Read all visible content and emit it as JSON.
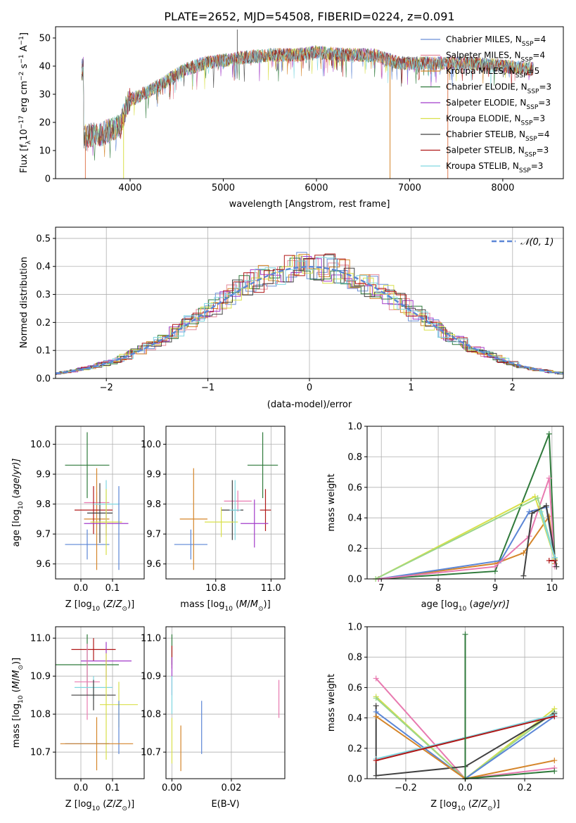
{
  "figure": {
    "title": "PLATE=2652, MJD=54508, FIBERID=0224, z=0.091"
  },
  "chart_data": [
    {
      "id": "spectrum",
      "type": "line",
      "title": "PLATE=2652, MJD=54508, FIBERID=0224, z=0.091",
      "xlabel": "wavelength [Angstrom, rest frame]",
      "ylabel_main": "Flux [f",
      "ylabel_sub": "λ",
      "ylabel_rest": "10",
      "ylabel_exp": "−17",
      "ylabel_tail": " erg cm",
      "ylabel_exp2": "−2",
      "ylabel_tail2": " s",
      "ylabel_exp3": "−1",
      "ylabel_tail3": " A",
      "ylabel_exp4": "−1",
      "ylabel_end": "]",
      "xlim": [
        3200,
        8650
      ],
      "ylim": [
        0,
        54
      ],
      "xticks": [
        4000,
        5000,
        6000,
        7000,
        8000
      ],
      "yticks": [
        0,
        10,
        20,
        30,
        40,
        50
      ],
      "continuum": [
        [
          3500,
          15
        ],
        [
          3700,
          16
        ],
        [
          3900,
          19
        ],
        [
          3950,
          25
        ],
        [
          4000,
          28
        ],
        [
          4200,
          31
        ],
        [
          4400,
          35
        ],
        [
          4600,
          39
        ],
        [
          4800,
          41
        ],
        [
          5000,
          42
        ],
        [
          5200,
          43
        ],
        [
          5500,
          44
        ],
        [
          5800,
          44
        ],
        [
          6000,
          45
        ],
        [
          6300,
          44
        ],
        [
          6600,
          44
        ],
        [
          6900,
          41
        ],
        [
          7100,
          41
        ],
        [
          7400,
          41
        ],
        [
          7700,
          41
        ],
        [
          8000,
          40
        ],
        [
          8300,
          39
        ]
      ],
      "series": [
        {
          "name_pre": "Chabrier MILES, N",
          "name_sub": "SSP",
          "name_post": "=4",
          "color": "#6a8fd6"
        },
        {
          "name_pre": "Salpeter MILES, N",
          "name_sub": "SSP",
          "name_post": "=4",
          "color": "#e58a9a"
        },
        {
          "name_pre": "Kroupa MILES, N",
          "name_sub": "SSP",
          "name_post": "=5",
          "color": "#d5852a"
        },
        {
          "name_pre": "Chabrier ELODIE, N",
          "name_sub": "SSP",
          "name_post": "=3",
          "color": "#2f7a3b"
        },
        {
          "name_pre": "Salpeter ELODIE, N",
          "name_sub": "SSP",
          "name_post": "=3",
          "color": "#a23bc9"
        },
        {
          "name_pre": "Kroupa ELODIE, N",
          "name_sub": "SSP",
          "name_post": "=3",
          "color": "#d9e04a"
        },
        {
          "name_pre": "Chabrier STELIB, N",
          "name_sub": "SSP",
          "name_post": "=4",
          "color": "#404040"
        },
        {
          "name_pre": "Salpeter STELIB, N",
          "name_sub": "SSP",
          "name_post": "=3",
          "color": "#b01818"
        },
        {
          "name_pre": "Kroupa STELIB, N",
          "name_sub": "SSP",
          "name_post": "=3",
          "color": "#7fd6e0"
        }
      ],
      "drops": [
        {
          "x": 3520,
          "color": "#e07b54"
        },
        {
          "x": 3930,
          "color": "#d9e04a"
        },
        {
          "x": 6790,
          "color": "#d5852a"
        },
        {
          "x": 7410,
          "color": "#e07b54"
        }
      ]
    },
    {
      "id": "residuals",
      "type": "line",
      "xlabel": "(data-model)/error",
      "ylabel": "Normed distribution",
      "xlim": [
        -2.5,
        2.5
      ],
      "ylim": [
        0,
        0.54
      ],
      "xticks": [
        -2,
        -1,
        0,
        1,
        2
      ],
      "yticks": [
        0.0,
        0.1,
        0.2,
        0.3,
        0.4,
        0.5
      ],
      "legend_label": "𝒩(0, 1)",
      "normal_color": "#5b86d6",
      "bin_width": 0.1
    },
    {
      "id": "age_vs_Z",
      "type": "scatter",
      "xlabel": "Z [log",
      "xlabel_sub": "10",
      "xlabel_rest": "(Z/Z",
      "xlabel_sub2": "⊙",
      "xlabel_end": ")]",
      "ylabel": "age  [log",
      "ylabel_sub": "10",
      "ylabel_rest": "(age/yr)]",
      "xlim": [
        -0.08,
        0.2
      ],
      "ylim": [
        9.55,
        10.06
      ],
      "xticks": [
        0.0,
        0.1
      ],
      "yticks": [
        9.6,
        9.7,
        9.8,
        9.9,
        10.0
      ],
      "points": [
        {
          "x": 0.02,
          "y": 9.93,
          "xerr": 0.07,
          "yerr": 0.11,
          "color": "#2f7a3b"
        },
        {
          "x": 0.02,
          "y": 9.665,
          "xerr": 0.07,
          "yerr": 0.05,
          "color": "#5b86d6"
        },
        {
          "x": 0.05,
          "y": 9.805,
          "xerr": 0.04,
          "yerr": 0.035,
          "color": "#e87ab0"
        },
        {
          "x": 0.05,
          "y": 9.75,
          "xerr": 0.04,
          "yerr": 0.17,
          "color": "#d5852a"
        },
        {
          "x": 0.04,
          "y": 9.78,
          "xerr": 0.06,
          "yerr": 0.08,
          "color": "#b01818"
        },
        {
          "x": 0.06,
          "y": 9.77,
          "xerr": 0.04,
          "yerr": 0.1,
          "color": "#404040"
        },
        {
          "x": 0.08,
          "y": 9.8,
          "xerr": 0.04,
          "yerr": 0.08,
          "color": "#7fd6e0"
        },
        {
          "x": 0.08,
          "y": 9.735,
          "xerr": 0.07,
          "yerr": 0.04,
          "color": "#a23bc9"
        },
        {
          "x": 0.08,
          "y": 9.74,
          "xerr": 0.05,
          "yerr": 0.11,
          "color": "#d9e04a"
        },
        {
          "x": 0.12,
          "y": 9.72,
          "xerr": 0.0,
          "yerr": 0.14,
          "color": "#5b86d6"
        }
      ]
    },
    {
      "id": "age_vs_mass",
      "type": "scatter",
      "xlabel": "mass [log",
      "xlabel_sub": "10",
      "xlabel_rest": "(M/M",
      "xlabel_sub2": "⊙",
      "xlabel_end": ")]",
      "xlim": [
        10.62,
        11.05
      ],
      "ylim": [
        9.55,
        10.06
      ],
      "xticks": [
        10.8,
        11.0
      ],
      "yticks": [
        9.6,
        9.7,
        9.8,
        9.9,
        10.0
      ],
      "points": [
        {
          "x": 10.97,
          "y": 9.93,
          "xerr": 0.055,
          "yerr": 0.11,
          "color": "#2f7a3b"
        },
        {
          "x": 10.71,
          "y": 9.665,
          "xerr": 0.06,
          "yerr": 0.05,
          "color": "#5b86d6"
        },
        {
          "x": 10.88,
          "y": 9.81,
          "xerr": 0.05,
          "yerr": 0.035,
          "color": "#e87ab0"
        },
        {
          "x": 10.72,
          "y": 9.75,
          "xerr": 0.05,
          "yerr": 0.17,
          "color": "#d5852a"
        },
        {
          "x": 10.86,
          "y": 9.78,
          "xerr": 0.04,
          "yerr": 0.1,
          "color": "#404040"
        },
        {
          "x": 10.98,
          "y": 9.78,
          "xerr": 0.02,
          "yerr": 0.07,
          "color": "#b01818"
        },
        {
          "x": 10.94,
          "y": 9.735,
          "xerr": 0.05,
          "yerr": 0.08,
          "color": "#a23bc9"
        },
        {
          "x": 10.82,
          "y": 9.74,
          "xerr": 0.06,
          "yerr": 0.05,
          "color": "#d9e04a"
        },
        {
          "x": 10.87,
          "y": 9.78,
          "xerr": 0.02,
          "yerr": 0.1,
          "color": "#7fd6e0"
        }
      ]
    },
    {
      "id": "weight_vs_age",
      "type": "line",
      "xlabel": "age  [log",
      "xlabel_sub": "10",
      "xlabel_rest": "(age/yr)]",
      "ylabel": "mass weight",
      "xlim": [
        6.75,
        10.2
      ],
      "ylim": [
        0.0,
        1.0
      ],
      "xticks": [
        7,
        8,
        9,
        10
      ],
      "yticks": [
        0.0,
        0.2,
        0.4,
        0.6,
        0.8,
        1.0
      ],
      "series": [
        {
          "color": "#2f7a3b",
          "points": [
            [
              6.95,
              0.0
            ],
            [
              9.0,
              0.05
            ],
            [
              9.95,
              0.95
            ],
            [
              10.05,
              0.12
            ]
          ]
        },
        {
          "color": "#d5852a",
          "points": [
            [
              6.95,
              0.0
            ],
            [
              9.0,
              0.1
            ],
            [
              9.5,
              0.17
            ],
            [
              9.95,
              0.41
            ],
            [
              10.05,
              0.1
            ]
          ]
        },
        {
          "color": "#5b86d6",
          "points": [
            [
              6.95,
              0.0
            ],
            [
              9.1,
              0.12
            ],
            [
              9.6,
              0.44
            ],
            [
              9.9,
              0.47
            ],
            [
              10.05,
              0.13
            ]
          ]
        },
        {
          "color": "#e87ab0",
          "points": [
            [
              6.95,
              0.0
            ],
            [
              9.0,
              0.08
            ],
            [
              9.6,
              0.28
            ],
            [
              9.95,
              0.66
            ],
            [
              10.05,
              0.08
            ]
          ]
        },
        {
          "color": "#d9e04a",
          "points": [
            [
              6.9,
              0.0
            ],
            [
              9.7,
              0.54
            ],
            [
              10.05,
              0.13
            ]
          ]
        },
        {
          "color": "#9bd68a",
          "points": [
            [
              6.9,
              0.0
            ],
            [
              9.75,
              0.53
            ],
            [
              10.05,
              0.14
            ]
          ]
        },
        {
          "color": "#404040",
          "points": [
            [
              9.5,
              0.02
            ],
            [
              9.65,
              0.43
            ],
            [
              9.9,
              0.48
            ],
            [
              10.08,
              0.08
            ]
          ]
        },
        {
          "color": "#b01818",
          "points": [
            [
              9.95,
              0.12
            ],
            [
              10.05,
              0.12
            ]
          ]
        },
        {
          "color": "#7fd6e0",
          "points": [
            [
              9.8,
              0.44
            ],
            [
              10.05,
              0.14
            ]
          ]
        }
      ]
    },
    {
      "id": "mass_vs_Z",
      "type": "scatter",
      "xlabel": "Z [log",
      "xlabel_sub": "10",
      "xlabel_rest": "(Z/Z",
      "xlabel_sub2": "⊙",
      "xlabel_end": ")]",
      "ylabel": "mass [log",
      "ylabel_sub": "10",
      "ylabel_rest": "(M/M",
      "ylabel_sub2": "⊙",
      "ylabel_end": ")]",
      "xlim": [
        -0.08,
        0.2
      ],
      "ylim": [
        10.63,
        11.03
      ],
      "xticks": [
        0.0,
        0.1
      ],
      "yticks": [
        10.7,
        10.8,
        10.9,
        11.0
      ],
      "points": [
        {
          "x": 0.04,
          "y": 10.97,
          "xerr": 0.07,
          "yerr": 0.03,
          "color": "#b01818"
        },
        {
          "x": 0.02,
          "y": 10.93,
          "xerr": 0.1,
          "yerr": 0.08,
          "color": "#2f7a3b"
        },
        {
          "x": 0.08,
          "y": 10.94,
          "xerr": 0.08,
          "yerr": 0.05,
          "color": "#a23bc9"
        },
        {
          "x": 0.02,
          "y": 10.885,
          "xerr": 0.04,
          "yerr": 0.1,
          "color": "#e87ab0"
        },
        {
          "x": 0.04,
          "y": 10.87,
          "xerr": 0.06,
          "yerr": 0.03,
          "color": "#7fd6e0"
        },
        {
          "x": 0.04,
          "y": 10.85,
          "xerr": 0.07,
          "yerr": 0.04,
          "color": "#404040"
        },
        {
          "x": 0.12,
          "y": 10.825,
          "xerr": 0.06,
          "yerr": 0.06,
          "color": "#d9e04a"
        },
        {
          "x": 0.08,
          "y": 10.82,
          "xerr": 0.0,
          "yerr": 0.14,
          "color": "#d9e04a"
        },
        {
          "x": 0.12,
          "y": 10.765,
          "xerr": 0.0,
          "yerr": 0.07,
          "color": "#5b86d6"
        },
        {
          "x": 0.02,
          "y": 10.722,
          "xerr": 0.07,
          "yerr": 0.0,
          "color": "#5b86d6"
        },
        {
          "x": 0.05,
          "y": 10.722,
          "xerr": 0.115,
          "yerr": 0.07,
          "color": "#d5852a"
        }
      ]
    },
    {
      "id": "mass_vs_ebv",
      "type": "scatter",
      "xlabel": "E(B-V)",
      "xlim": [
        -0.002,
        0.038
      ],
      "ylim": [
        10.63,
        11.03
      ],
      "xticks": [
        0.0,
        0.02
      ],
      "yticks": [
        10.7,
        10.8,
        10.9,
        11.0
      ],
      "points": [
        {
          "x": 0.0,
          "y": 10.97,
          "xerr": 0.0,
          "yerr": 0.04,
          "color": "#2f7a3b"
        },
        {
          "x": 0.0,
          "y": 10.95,
          "xerr": 0.0,
          "yerr": 0.03,
          "color": "#b01818"
        },
        {
          "x": 0.0,
          "y": 10.9,
          "xerr": 0.0,
          "yerr": 0.05,
          "color": "#a23bc9"
        },
        {
          "x": 0.0,
          "y": 10.85,
          "xerr": 0.0,
          "yerr": 0.05,
          "color": "#7fd6e0"
        },
        {
          "x": 0.0,
          "y": 10.73,
          "xerr": 0.0,
          "yerr": 0.06,
          "color": "#d9e04a"
        },
        {
          "x": 0.003,
          "y": 10.71,
          "xerr": 0.0,
          "yerr": 0.06,
          "color": "#d5852a"
        },
        {
          "x": 0.01,
          "y": 10.765,
          "xerr": 0.0,
          "yerr": 0.07,
          "color": "#5b86d6"
        },
        {
          "x": 0.036,
          "y": 10.84,
          "xerr": 0.0,
          "yerr": 0.05,
          "color": "#e87ab0"
        }
      ]
    },
    {
      "id": "weight_vs_Z",
      "type": "line",
      "xlabel": "Z [log",
      "xlabel_sub": "10",
      "xlabel_rest": "(Z/Z",
      "xlabel_sub2": "⊙",
      "xlabel_end": ")]",
      "ylabel": "mass weight",
      "xlim": [
        -0.33,
        0.33
      ],
      "ylim": [
        0.0,
        1.0
      ],
      "xticks": [
        -0.2,
        0.0,
        0.2
      ],
      "yticks": [
        0.0,
        0.2,
        0.4,
        0.6,
        0.8,
        1.0
      ],
      "series": [
        {
          "color": "#e87ab0",
          "points": [
            [
              -0.3,
              0.66
            ],
            [
              0.0,
              0.0
            ],
            [
              0.3,
              0.07
            ]
          ]
        },
        {
          "color": "#d9e04a",
          "points": [
            [
              -0.3,
              0.54
            ],
            [
              0.0,
              0.0
            ],
            [
              0.3,
              0.46
            ]
          ]
        },
        {
          "color": "#9bd68a",
          "points": [
            [
              -0.3,
              0.53
            ],
            [
              0.0,
              0.0
            ],
            [
              0.3,
              0.44
            ]
          ]
        },
        {
          "color": "#404040",
          "points": [
            [
              -0.3,
              0.48
            ],
            [
              -0.3,
              0.02
            ],
            [
              0.0,
              0.08
            ],
            [
              0.3,
              0.43
            ]
          ]
        },
        {
          "color": "#5b86d6",
          "points": [
            [
              -0.3,
              0.44
            ],
            [
              0.0,
              0.0
            ],
            [
              0.3,
              0.41
            ]
          ]
        },
        {
          "color": "#d5852a",
          "points": [
            [
              -0.3,
              0.41
            ],
            [
              0.0,
              0.0
            ],
            [
              0.3,
              0.12
            ]
          ]
        },
        {
          "color": "#7fd6e0",
          "points": [
            [
              -0.3,
              0.13
            ],
            [
              0.0,
              0.27
            ],
            [
              0.3,
              0.42
            ]
          ]
        },
        {
          "color": "#b01818",
          "points": [
            [
              -0.3,
              0.12
            ],
            [
              0.3,
              0.41
            ]
          ]
        },
        {
          "color": "#2f7a3b",
          "points": [
            [
              0.0,
              0.95
            ],
            [
              0.0,
              0.0
            ],
            [
              0.3,
              0.05
            ]
          ]
        }
      ]
    }
  ]
}
